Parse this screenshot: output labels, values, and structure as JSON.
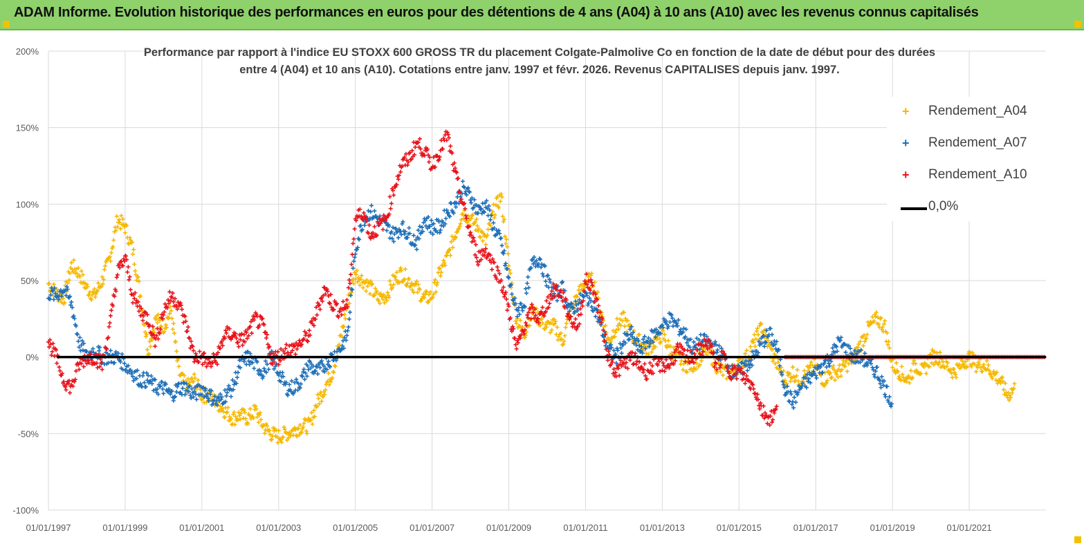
{
  "banner": {
    "title": "ADAM Informe. Evolution historique des performances en euros pour des détentions de 4 ans (A04) à 10 ans (A10) avec les revenus connus capitalisés"
  },
  "colors": {
    "banner": "#8fd16a",
    "A04": "#f5b800",
    "A07": "#1f6fb8",
    "A10": "#e8131b",
    "zero": "#000000",
    "grid": "#d9d9d9"
  },
  "chart_data": {
    "type": "scatter",
    "title_line1": "Performance par rapport à l'indice EU STOXX 600 GROSS TR  du placement Colgate-Palmolive Co en fonction de la date de début pour des durées",
    "title_line2": "entre 4 (A04) et 10 ans (A10). Cotations entre janv. 1997 et févr. 2026. Revenus CAPITALISES depuis janv. 1997.",
    "y_ticks": [
      "200%",
      "150%",
      "100%",
      "50%",
      "0%",
      "-50%",
      "-100%"
    ],
    "ylim": [
      -100,
      200
    ],
    "x_ticks": [
      "01/01/1997",
      "01/01/1999",
      "01/01/2001",
      "01/01/2003",
      "01/01/2005",
      "01/01/2007",
      "01/01/2009",
      "01/01/2011",
      "01/01/2013",
      "01/01/2015",
      "01/01/2017",
      "01/01/2019",
      "01/01/2021"
    ],
    "xlim": [
      1997.0,
      2023.0
    ],
    "legend_position": "top-right",
    "grid": true,
    "series": [
      {
        "name": "Rendement_A04",
        "marker": "+",
        "x": [
          1997.0,
          1997.2,
          1997.4,
          1997.6,
          1997.8,
          1998.0,
          1998.2,
          1998.4,
          1998.6,
          1998.8,
          1999.0,
          1999.2,
          1999.4,
          1999.6,
          1999.8,
          2000.0,
          2000.2,
          2000.4,
          2000.6,
          2000.8,
          2001.0,
          2001.2,
          2001.4,
          2001.6,
          2001.8,
          2002.0,
          2002.2,
          2002.4,
          2002.6,
          2002.8,
          2003.0,
          2003.2,
          2003.4,
          2003.6,
          2003.8,
          2004.0,
          2004.2,
          2004.4,
          2004.6,
          2004.8,
          2005.0,
          2005.2,
          2005.4,
          2005.6,
          2005.8,
          2006.0,
          2006.2,
          2006.4,
          2006.6,
          2006.8,
          2007.0,
          2007.2,
          2007.4,
          2007.6,
          2007.8,
          2008.0,
          2008.2,
          2008.4,
          2008.6,
          2008.8,
          2009.0,
          2009.2,
          2009.4,
          2009.6,
          2009.8,
          2010.0,
          2010.2,
          2010.4,
          2010.6,
          2010.8,
          2011.0,
          2011.2,
          2011.4,
          2011.6,
          2011.8,
          2012.0,
          2012.2,
          2012.4,
          2012.6,
          2012.8,
          2013.0,
          2013.2,
          2013.4,
          2013.6,
          2013.8,
          2014.0,
          2014.2,
          2014.4,
          2014.6,
          2014.8,
          2015.0,
          2015.2,
          2015.4,
          2015.6,
          2015.8,
          2016.0,
          2016.2,
          2016.4,
          2016.6,
          2016.8,
          2017.0,
          2017.2,
          2017.4,
          2017.6,
          2017.8,
          2018.0,
          2018.2,
          2018.4,
          2018.6,
          2018.8,
          2019.0,
          2019.2,
          2019.4,
          2019.6,
          2019.8,
          2020.0,
          2020.2,
          2020.4,
          2020.6,
          2020.8,
          2021.0,
          2021.2,
          2021.4,
          2021.6,
          2021.8,
          2022.0,
          2022.2
        ],
        "values": [
          48,
          42,
          38,
          60,
          55,
          45,
          40,
          50,
          65,
          90,
          85,
          70,
          40,
          5,
          25,
          20,
          30,
          -10,
          -20,
          -15,
          -25,
          -25,
          -30,
          -35,
          -40,
          -38,
          -40,
          -35,
          -45,
          -50,
          -52,
          -50,
          -48,
          -45,
          -45,
          -30,
          -20,
          -10,
          10,
          35,
          55,
          50,
          45,
          38,
          40,
          50,
          55,
          50,
          45,
          38,
          40,
          55,
          65,
          80,
          95,
          90,
          85,
          75,
          95,
          105,
          60,
          25,
          15,
          30,
          25,
          20,
          20,
          10,
          30,
          40,
          50,
          50,
          30,
          10,
          20,
          25,
          15,
          10,
          5,
          10,
          15,
          5,
          0,
          -5,
          -5,
          0,
          5,
          -5,
          -10,
          -10,
          -5,
          0,
          10,
          20,
          5,
          -5,
          -15,
          -10,
          -15,
          -10,
          -5,
          -15,
          -10,
          -10,
          -5,
          0,
          10,
          20,
          25,
          20,
          -5,
          -10,
          -15,
          -5,
          -10,
          0,
          0,
          -5,
          -10,
          -5,
          0,
          -5,
          -5,
          -10,
          -15,
          -25,
          -20
        ]
      },
      {
        "name": "Rendement_A07",
        "marker": "+",
        "x": [
          1997.0,
          1997.2,
          1997.4,
          1997.6,
          1997.8,
          1998.0,
          1998.2,
          1998.4,
          1998.6,
          1998.8,
          1999.0,
          1999.2,
          1999.4,
          1999.6,
          1999.8,
          2000.0,
          2000.2,
          2000.4,
          2000.6,
          2000.8,
          2001.0,
          2001.2,
          2001.4,
          2001.6,
          2001.8,
          2002.0,
          2002.2,
          2002.4,
          2002.6,
          2002.8,
          2003.0,
          2003.2,
          2003.4,
          2003.6,
          2003.8,
          2004.0,
          2004.2,
          2004.4,
          2004.6,
          2004.8,
          2005.0,
          2005.2,
          2005.4,
          2005.6,
          2005.8,
          2006.0,
          2006.2,
          2006.4,
          2006.6,
          2006.8,
          2007.0,
          2007.2,
          2007.4,
          2007.6,
          2007.8,
          2008.0,
          2008.2,
          2008.4,
          2008.6,
          2008.8,
          2009.0,
          2009.2,
          2009.4,
          2009.6,
          2009.8,
          2010.0,
          2010.2,
          2010.4,
          2010.6,
          2010.8,
          2011.0,
          2011.2,
          2011.4,
          2011.6,
          2011.8,
          2012.0,
          2012.2,
          2012.4,
          2012.6,
          2012.8,
          2013.0,
          2013.2,
          2013.4,
          2013.6,
          2013.8,
          2014.0,
          2014.2,
          2014.4,
          2014.6,
          2014.8,
          2015.0,
          2015.2,
          2015.4,
          2015.6,
          2015.8,
          2016.0,
          2016.2,
          2016.4,
          2016.6,
          2016.8,
          2017.0,
          2017.2,
          2017.4,
          2017.6,
          2017.8,
          2018.0,
          2018.2,
          2018.4,
          2018.6,
          2018.8,
          2019.0
        ],
        "values": [
          42,
          40,
          45,
          35,
          10,
          0,
          5,
          0,
          0,
          0,
          -5,
          -10,
          -15,
          -15,
          -20,
          -20,
          -25,
          -20,
          -20,
          -25,
          -20,
          -25,
          -30,
          -25,
          -20,
          -5,
          0,
          -5,
          -10,
          0,
          -10,
          -20,
          -20,
          -15,
          -5,
          -10,
          -5,
          0,
          5,
          15,
          70,
          90,
          95,
          90,
          85,
          80,
          85,
          80,
          75,
          90,
          85,
          85,
          95,
          100,
          110,
          105,
          95,
          100,
          85,
          75,
          50,
          30,
          35,
          60,
          65,
          50,
          40,
          45,
          30,
          35,
          40,
          35,
          20,
          5,
          0,
          10,
          15,
          5,
          10,
          15,
          20,
          25,
          20,
          15,
          5,
          10,
          10,
          5,
          0,
          -10,
          -10,
          -5,
          0,
          10,
          15,
          5,
          -20,
          -30,
          -20,
          -15,
          -10,
          -5,
          0,
          10,
          5,
          0,
          0,
          -5,
          -10,
          -20,
          -30
        ]
      },
      {
        "name": "Rendement_A10",
        "marker": "+",
        "x": [
          1997.0,
          1997.2,
          1997.4,
          1997.6,
          1997.8,
          1998.0,
          1998.2,
          1998.4,
          1998.6,
          1998.8,
          1999.0,
          1999.2,
          1999.4,
          1999.6,
          1999.8,
          2000.0,
          2000.2,
          2000.4,
          2000.6,
          2000.8,
          2001.0,
          2001.2,
          2001.4,
          2001.6,
          2001.8,
          2002.0,
          2002.2,
          2002.4,
          2002.6,
          2002.8,
          2003.0,
          2003.2,
          2003.4,
          2003.6,
          2003.8,
          2004.0,
          2004.2,
          2004.4,
          2004.6,
          2004.8,
          2005.0,
          2005.2,
          2005.4,
          2005.6,
          2005.8,
          2006.0,
          2006.2,
          2006.4,
          2006.6,
          2006.8,
          2007.0,
          2007.2,
          2007.4,
          2007.6,
          2007.8,
          2008.0,
          2008.2,
          2008.4,
          2008.6,
          2008.8,
          2009.0,
          2009.2,
          2009.4,
          2009.6,
          2009.8,
          2010.0,
          2010.2,
          2010.4,
          2010.6,
          2010.8,
          2011.0,
          2011.2,
          2011.4,
          2011.6,
          2011.8,
          2012.0,
          2012.2,
          2012.4,
          2012.6,
          2012.8,
          2013.0,
          2013.2,
          2013.4,
          2013.6,
          2013.8,
          2014.0,
          2014.2,
          2014.4,
          2014.6,
          2014.8,
          2015.0,
          2015.2,
          2015.4,
          2015.6,
          2015.8,
          2016.0
        ],
        "values": [
          10,
          0,
          -15,
          -20,
          -5,
          0,
          0,
          -5,
          20,
          55,
          65,
          40,
          30,
          25,
          10,
          30,
          40,
          35,
          20,
          0,
          0,
          -5,
          0,
          15,
          15,
          10,
          15,
          25,
          20,
          0,
          0,
          5,
          5,
          10,
          15,
          30,
          45,
          35,
          30,
          35,
          90,
          95,
          80,
          85,
          90,
          110,
          125,
          130,
          140,
          135,
          125,
          135,
          145,
          120,
          100,
          80,
          65,
          70,
          60,
          50,
          30,
          5,
          20,
          30,
          25,
          35,
          45,
          40,
          25,
          20,
          50,
          45,
          25,
          0,
          -10,
          -5,
          0,
          -5,
          -10,
          -5,
          -5,
          -5,
          5,
          0,
          0,
          5,
          10,
          -5,
          0,
          -10,
          -10,
          -15,
          -20,
          -35,
          -40,
          -35
        ]
      },
      {
        "name": "Rendement_A10",
        "marker": "+",
        "note_series": "flat",
        "x": [
          2016.2,
          2016.6,
          2017.0,
          2017.4,
          2017.8,
          2018.2,
          2018.6,
          2019.0,
          2019.4,
          2019.8,
          2020.2,
          2020.6,
          2021.0,
          2021.4,
          2021.8,
          2022.2,
          2022.6,
          2023.0
        ],
        "values": [
          0,
          0,
          0,
          0,
          0,
          0,
          0,
          0,
          0,
          0,
          0,
          0,
          0,
          0,
          0,
          0,
          0,
          0
        ]
      }
    ],
    "legend": [
      {
        "label": "Rendement_A04",
        "kind": "marker",
        "color": "#f5b800"
      },
      {
        "label": "Rendement_A07",
        "kind": "marker",
        "color": "#1f6fb8"
      },
      {
        "label": "Rendement_A10",
        "kind": "marker",
        "color": "#e8131b"
      },
      {
        "label": "0,0%",
        "kind": "line",
        "color": "#000000"
      }
    ]
  }
}
